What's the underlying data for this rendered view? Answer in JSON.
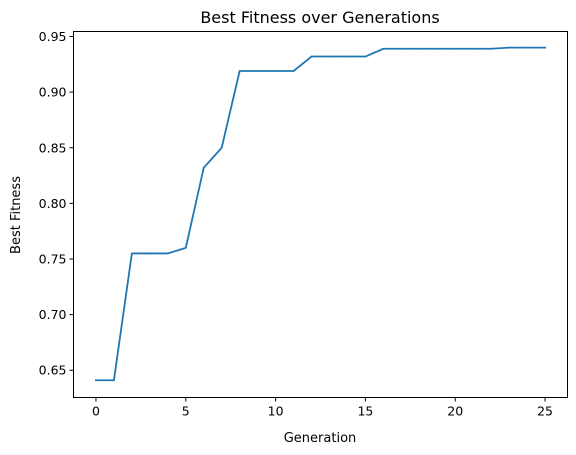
{
  "chart_data": {
    "type": "line",
    "title": "Best Fitness over Generations",
    "xlabel": "Generation",
    "ylabel": "Best Fitness",
    "xlim": [
      -1.25,
      26.25
    ],
    "ylim": [
      0.6255,
      0.9545
    ],
    "xticks": [
      0,
      5,
      10,
      15,
      20,
      25
    ],
    "yticks": [
      0.65,
      0.7,
      0.75,
      0.8,
      0.85,
      0.9,
      0.95
    ],
    "xtick_labels": [
      "0",
      "5",
      "10",
      "15",
      "20",
      "25"
    ],
    "ytick_labels": [
      "0.65",
      "0.70",
      "0.75",
      "0.80",
      "0.85",
      "0.90",
      "0.95"
    ],
    "grid": false,
    "series": [
      {
        "color": "#1f77b4",
        "x": [
          0,
          1,
          2,
          3,
          4,
          5,
          6,
          7,
          8,
          9,
          10,
          11,
          12,
          13,
          14,
          15,
          16,
          17,
          18,
          19,
          20,
          21,
          22,
          23,
          24,
          25
        ],
        "y": [
          0.641,
          0.641,
          0.755,
          0.755,
          0.755,
          0.76,
          0.832,
          0.85,
          0.919,
          0.919,
          0.919,
          0.919,
          0.932,
          0.932,
          0.932,
          0.932,
          0.939,
          0.939,
          0.939,
          0.939,
          0.939,
          0.939,
          0.939,
          0.94,
          0.94,
          0.94
        ]
      }
    ]
  }
}
